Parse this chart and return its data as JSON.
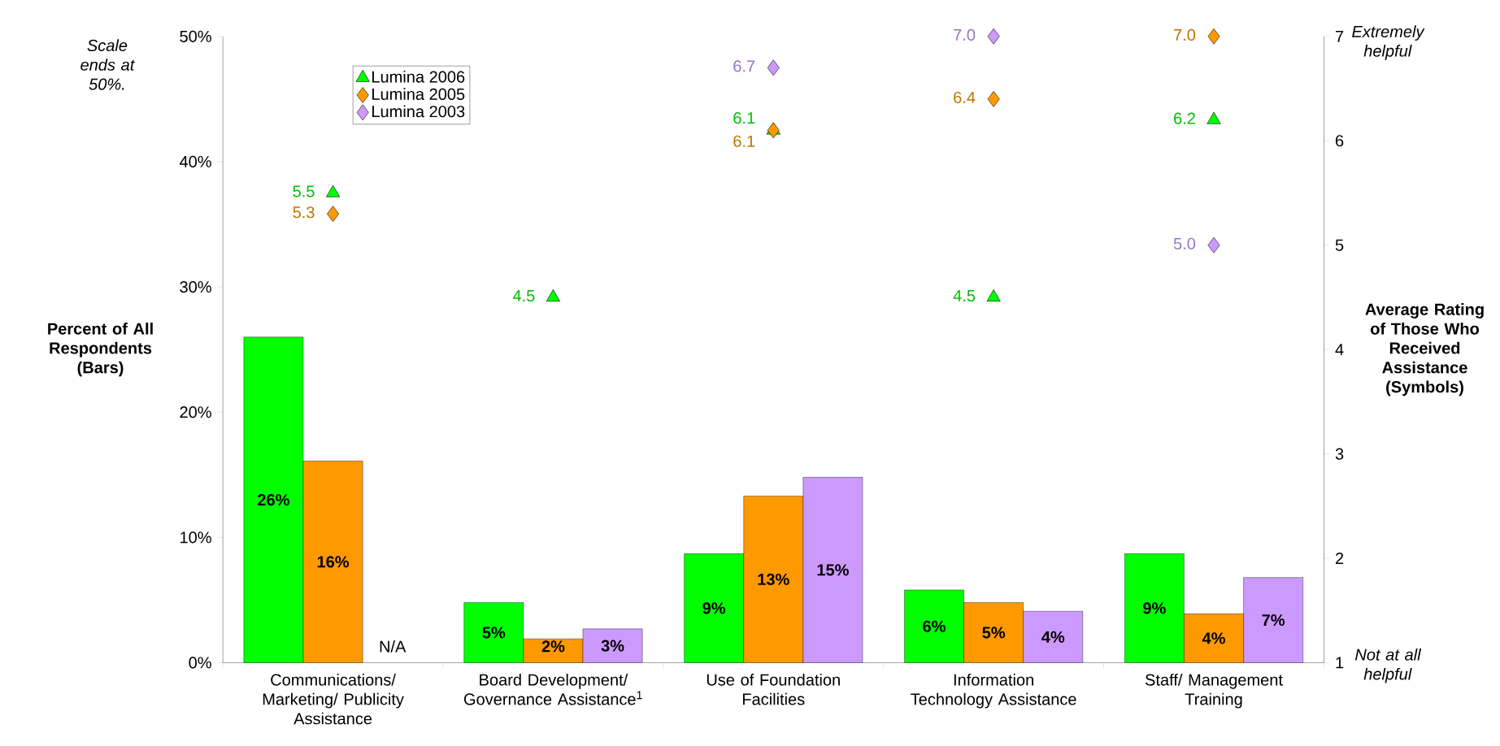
{
  "chart_data": {
    "type": "bar",
    "categories": [
      "Communications/ Marketing/ Publicity Assistance",
      "Board Development/ Governance Assistance$^{1}$",
      "Use of Foundation Facilities",
      "Information Technology Assistance",
      "Staff/ Management Training"
    ],
    "series": [
      {
        "color": "#00ff00",
        "values": [
          26,
          4.8,
          8.7,
          5.8,
          8.7
        ],
        "value_labels": [
          "26%",
          "5%",
          "9%",
          "6%",
          "9%"
        ]
      },
      {
        "color": "#ff9900",
        "values": [
          16.1,
          1.9,
          13.3,
          4.8,
          3.9
        ],
        "value_labels": [
          "16%",
          "2%",
          "13%",
          "5%",
          "4%"
        ]
      },
      {
        "color": "#cc99ff",
        "values": [
          null,
          2.7,
          14.8,
          4.1,
          6.8
        ],
        "value_labels": [
          "N/A",
          "3%",
          "15%",
          "4%",
          "7%"
        ]
      },
      {
        "type": "scatter",
        "name": "Lumina 2006",
        "axis": "y2",
        "marker": "triangle",
        "color": "#00ff00",
        "values": [
          5.5,
          4.5,
          6.1,
          4.5,
          6.2
        ],
        "value_labels": [
          "5.5",
          "4.5",
          "6.1",
          "4.5",
          "6.2"
        ]
      },
      {
        "type": "scatter",
        "name": "Lumina 2005",
        "axis": "y2",
        "marker": "diamond",
        "color": "#ff9900",
        "values": [
          5.3,
          null,
          6.1,
          6.4,
          7.0
        ],
        "value_labels": [
          "5.3",
          null,
          "6.1",
          "6.4",
          "7.0"
        ]
      },
      {
        "type": "scatter",
        "name": "Lumina 2003",
        "axis": "y2",
        "marker": "diamond",
        "color": "#cc99ff",
        "values": [
          null,
          null,
          6.7,
          7.0,
          5.0
        ],
        "value_labels": [
          null,
          null,
          "6.7",
          "7.0",
          "5.0"
        ]
      }
    ],
    "ylabel": "Percent of All Respondents (Bars)",
    "y2label": "Average Rating of Those Who Received Assistance (Symbols)",
    "ylim": [
      0,
      50
    ],
    "yticks": [
      {
        "value": 0,
        "label": "0%"
      },
      {
        "value": 10,
        "label": "10%"
      },
      {
        "value": 20,
        "label": "20%"
      },
      {
        "value": 30,
        "label": "30%"
      },
      {
        "value": 40,
        "label": "40%"
      },
      {
        "value": 50,
        "label": "50%"
      }
    ],
    "y2lim": [
      1,
      7
    ],
    "y2ticks": [
      1,
      2,
      3,
      4,
      5,
      6,
      7
    ],
    "legend": "top left",
    "annotations": [
      "*Scale ends at 50%.*",
      "*Extremely helpful*",
      "*Not at all helpful*"
    ]
  }
}
